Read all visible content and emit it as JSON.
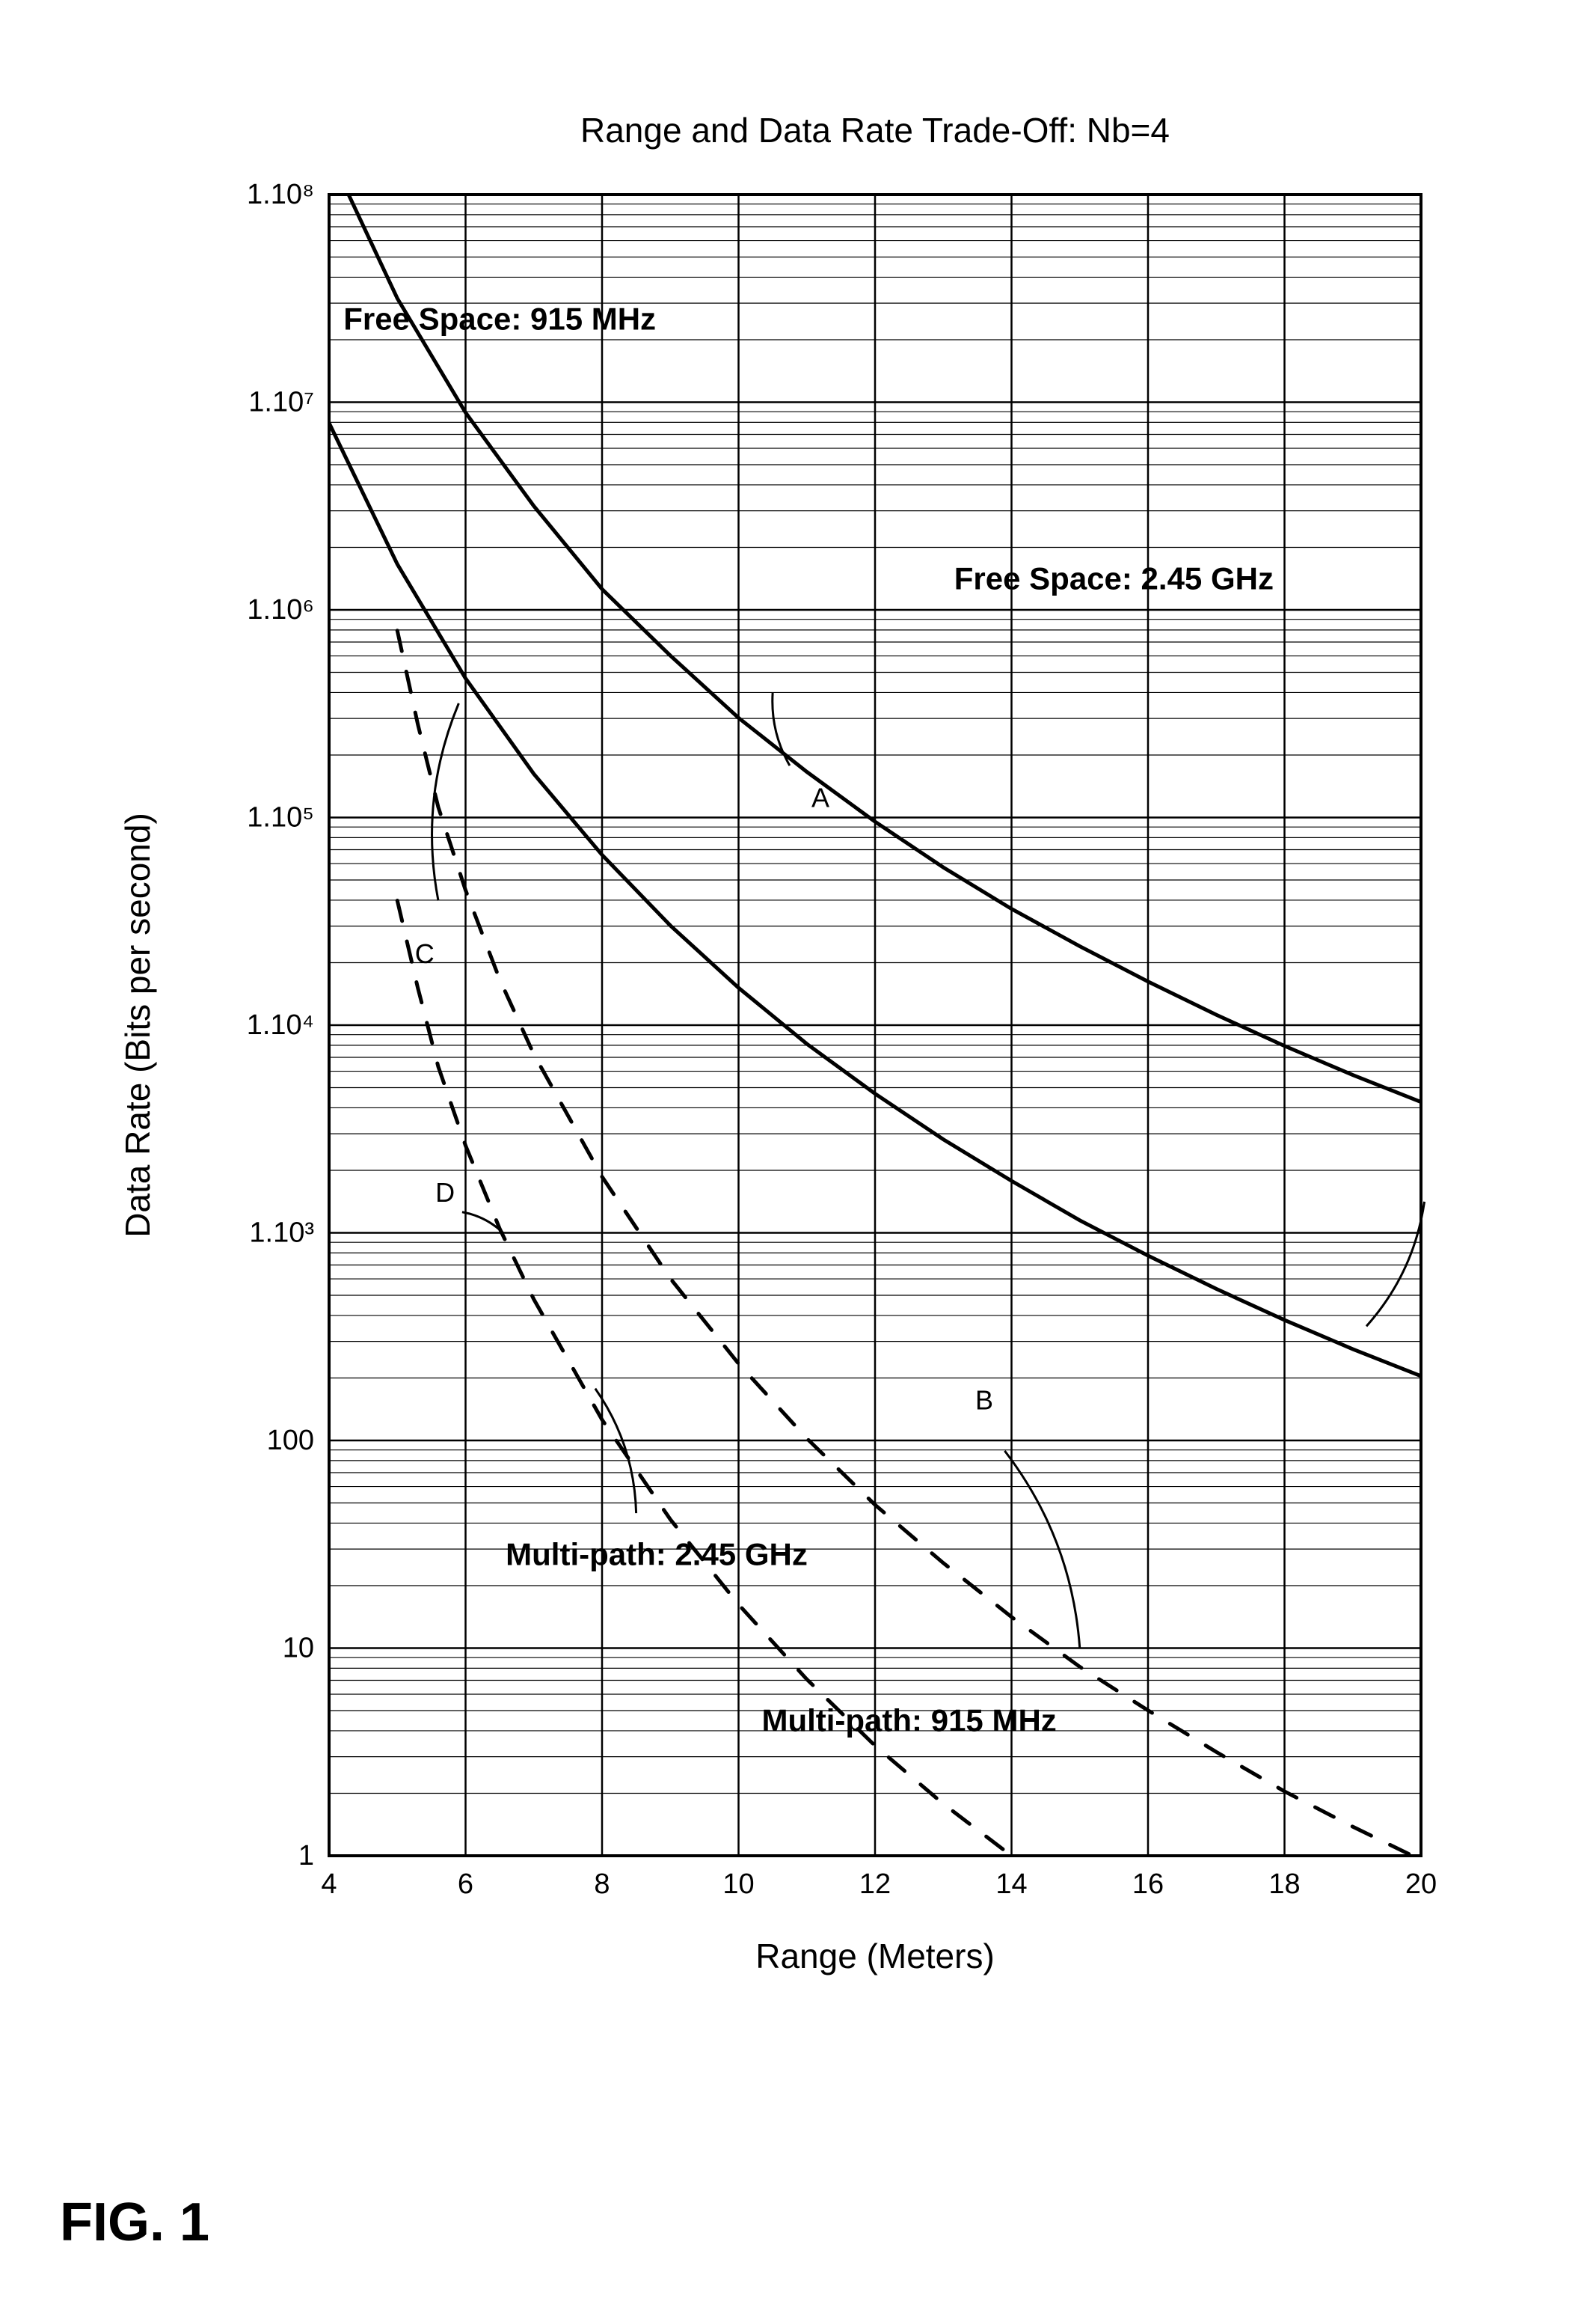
{
  "figure": {
    "label": "FIG. 1",
    "title": "Range and Data Rate Trade-Off:  Nb=4",
    "xlabel": "Range (Meters)",
    "ylabel": "Data Rate (Bits per second)",
    "xlim": [
      4,
      20
    ],
    "ylim_exp": [
      0,
      8
    ],
    "xticks": [
      4,
      6,
      8,
      10,
      12,
      14,
      16,
      18,
      20
    ],
    "yticks_exp": [
      0,
      1,
      2,
      3,
      4,
      5,
      6,
      7,
      8
    ],
    "ytick_labels": [
      "1",
      "10",
      "100",
      "1.10³",
      "1.10⁴",
      "1.10⁵",
      "1.10⁶",
      "1.10⁷",
      "1.10⁸"
    ],
    "background_color": "#ffffff",
    "axis_color": "#000000",
    "grid_color": "#000000",
    "grid_width": 2.5,
    "border_width": 4,
    "title_fontsize": 46,
    "label_fontsize": 46,
    "tick_fontsize": 38,
    "series_label_fontsize": 42,
    "callout_fontsize": 36
  },
  "series": [
    {
      "id": "A",
      "label": "Free Space:  915 MHz",
      "callout": "A",
      "color": "#000000",
      "line_width": 5,
      "dash": "none",
      "points": [
        [
          4,
          8.2
        ],
        [
          5,
          7.5
        ],
        [
          6,
          6.95
        ],
        [
          7,
          6.5
        ],
        [
          8,
          6.1
        ],
        [
          9,
          5.78
        ],
        [
          10,
          5.48
        ],
        [
          11,
          5.22
        ],
        [
          12,
          4.98
        ],
        [
          13,
          4.76
        ],
        [
          14,
          4.56
        ],
        [
          15,
          4.38
        ],
        [
          16,
          4.21
        ],
        [
          17,
          4.05
        ],
        [
          18,
          3.9
        ],
        [
          19,
          3.76
        ],
        [
          20,
          3.63
        ]
      ],
      "label_pos": [
        6.5,
        7.35
      ],
      "callout_pos": [
        11.2,
        5.05
      ],
      "callout_leader": [
        [
          10.5,
          5.6
        ],
        [
          10.75,
          5.25
        ]
      ]
    },
    {
      "id": "C",
      "label": "Free Space:  2.45 GHz",
      "callout": "C",
      "color": "#000000",
      "line_width": 5,
      "dash": "none",
      "points": [
        [
          4,
          6.9
        ],
        [
          5,
          6.22
        ],
        [
          6,
          5.67
        ],
        [
          7,
          5.21
        ],
        [
          8,
          4.82
        ],
        [
          9,
          4.48
        ],
        [
          10,
          4.18
        ],
        [
          11,
          3.91
        ],
        [
          12,
          3.67
        ],
        [
          13,
          3.45
        ],
        [
          14,
          3.25
        ],
        [
          15,
          3.06
        ],
        [
          16,
          2.89
        ],
        [
          17,
          2.73
        ],
        [
          18,
          2.58
        ],
        [
          19,
          2.44
        ],
        [
          20,
          2.31
        ]
      ],
      "label_pos": [
        15.5,
        6.1
      ],
      "callout_pos": [
        5.4,
        4.3
      ],
      "callout_leader": [
        [
          5.9,
          5.55
        ],
        [
          5.6,
          4.6
        ]
      ],
      "label_leader": [
        [
          19.2,
          2.55
        ],
        [
          20.05,
          3.15
        ]
      ]
    },
    {
      "id": "B",
      "label": "Multi-path:  915 MHz",
      "callout": "B",
      "color": "#000000",
      "line_width": 5,
      "dash": "28 28",
      "points": [
        [
          5,
          5.9
        ],
        [
          5.3,
          5.45
        ],
        [
          5.6,
          5.05
        ],
        [
          6,
          4.65
        ],
        [
          6.5,
          4.22
        ],
        [
          7,
          3.86
        ],
        [
          8,
          3.27
        ],
        [
          9,
          2.78
        ],
        [
          10,
          2.37
        ],
        [
          11,
          2.01
        ],
        [
          12,
          1.69
        ],
        [
          13,
          1.41
        ],
        [
          14,
          1.15
        ],
        [
          15,
          0.91
        ],
        [
          16,
          0.7
        ],
        [
          17,
          0.5
        ],
        [
          18,
          0.31
        ],
        [
          19,
          0.14
        ],
        [
          20,
          -0.02
        ]
      ],
      "label_pos": [
        12.5,
        0.6
      ],
      "callout_pos": [
        13.6,
        2.15
      ],
      "callout_leader": [
        [
          15.0,
          1.0
        ],
        [
          13.9,
          1.95
        ]
      ]
    },
    {
      "id": "D",
      "label": "Multi-path:  2.45 GHz",
      "callout": "D",
      "color": "#000000",
      "line_width": 5,
      "dash": "28 28",
      "points": [
        [
          5,
          4.6
        ],
        [
          5.3,
          4.18
        ],
        [
          5.6,
          3.8
        ],
        [
          6,
          3.42
        ],
        [
          6.5,
          3.02
        ],
        [
          7,
          2.68
        ],
        [
          8,
          2.1
        ],
        [
          9,
          1.62
        ],
        [
          10,
          1.21
        ],
        [
          11,
          0.85
        ],
        [
          12,
          0.53
        ],
        [
          13,
          0.25
        ],
        [
          14,
          0.0
        ],
        [
          15,
          -0.23
        ],
        [
          16,
          -0.44
        ],
        [
          17,
          -0.64
        ],
        [
          18,
          -0.83
        ],
        [
          19,
          -1.0
        ],
        [
          20,
          -1.16
        ]
      ],
      "label_pos": [
        8.8,
        1.4
      ],
      "callout_pos": [
        5.7,
        3.15
      ],
      "callout_leader": [
        [
          6.55,
          3.0
        ],
        [
          5.95,
          3.1
        ]
      ],
      "label_leader": [
        [
          8.5,
          1.65
        ],
        [
          7.9,
          2.25
        ]
      ]
    }
  ]
}
